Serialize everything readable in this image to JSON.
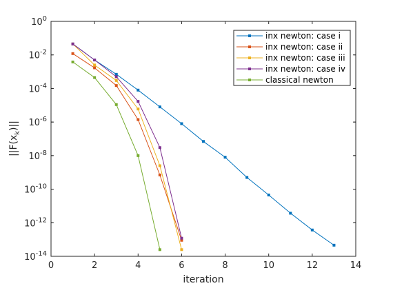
{
  "chart_data": {
    "type": "line",
    "xlabel": "iteration",
    "ylabel_main": "||F(x",
    "ylabel_sub": "k",
    "ylabel_tail": ")||",
    "xlim": [
      0,
      14
    ],
    "ylim": [
      1e-14,
      1
    ],
    "yscale": "log",
    "xticks": [
      0,
      2,
      4,
      6,
      8,
      10,
      12,
      14
    ],
    "yticks": [
      {
        "base": "10",
        "exp": "0",
        "value": 1
      },
      {
        "base": "10",
        "exp": "-2",
        "value": 0.01
      },
      {
        "base": "10",
        "exp": "-4",
        "value": 0.0001
      },
      {
        "base": "10",
        "exp": "-6",
        "value": 1e-06
      },
      {
        "base": "10",
        "exp": "-8",
        "value": 1e-08
      },
      {
        "base": "10",
        "exp": "-10",
        "value": 1e-10
      },
      {
        "base": "10",
        "exp": "-12",
        "value": 1e-12
      },
      {
        "base": "10",
        "exp": "-14",
        "value": 1e-14
      }
    ],
    "grid": false,
    "legend_position": "top-right",
    "series": [
      {
        "name": "inx newton: case i",
        "color": "#0072BD",
        "x": [
          1,
          2,
          3,
          4,
          5,
          6,
          7,
          8,
          9,
          10,
          11,
          12,
          13
        ],
        "y": [
          0.045,
          0.005,
          0.0007,
          8e-05,
          8e-06,
          8e-07,
          7e-08,
          8e-09,
          5e-10,
          4.5e-11,
          3.7e-12,
          3.7e-13,
          4.6e-14
        ]
      },
      {
        "name": "inx newton: case ii",
        "color": "#D95319",
        "x": [
          1,
          2,
          3,
          4,
          5,
          6
        ],
        "y": [
          0.012,
          0.0017,
          0.00015,
          1.4e-06,
          7e-10,
          9e-14
        ]
      },
      {
        "name": "inx newton: case iii",
        "color": "#EDB120",
        "x": [
          1,
          2,
          3,
          4,
          5,
          6
        ],
        "y": [
          0.045,
          0.0025,
          0.0003,
          6e-06,
          2.5e-09,
          2.5e-14
        ]
      },
      {
        "name": "inx newton: case iv",
        "color": "#7E2F8E",
        "x": [
          1,
          2,
          3,
          4,
          5,
          6
        ],
        "y": [
          0.045,
          0.005,
          0.0005,
          1.7e-05,
          3e-08,
          1.2e-13
        ]
      },
      {
        "name": "classical newton",
        "color": "#77AC30",
        "x": [
          1,
          2,
          3,
          4,
          5
        ],
        "y": [
          0.0038,
          0.00045,
          1.1e-05,
          1e-08,
          2.5e-14
        ]
      }
    ]
  }
}
